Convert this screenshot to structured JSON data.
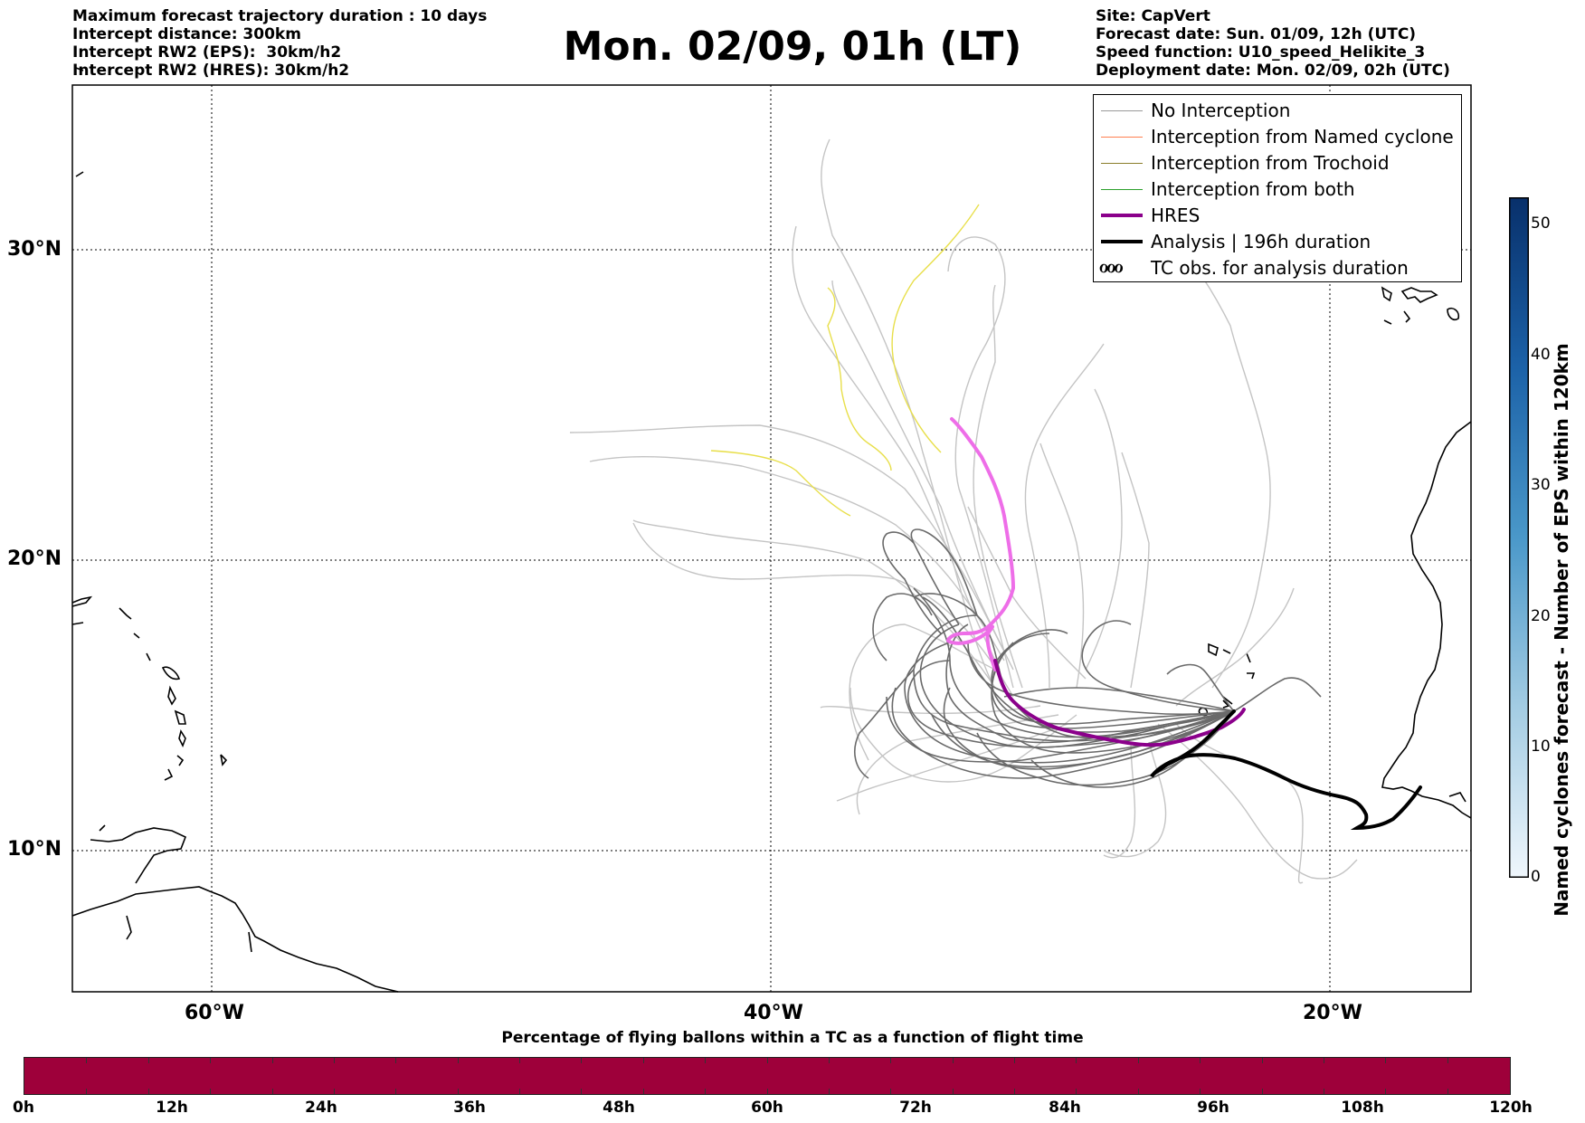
{
  "header_left": [
    "Maximum forecast trajectory duration : 10 days",
    "Intercept distance: 300km",
    "Intercept RW2 (EPS):  30km/h2",
    "Intercept RW2 (HRES): 30km/h2"
  ],
  "header_right": [
    "Site: CapVert",
    "Forecast date: Sun. 01/09, 12h (UTC)",
    "Speed function: U10_speed_Helikite_3",
    "Deployment date: Mon. 02/09, 02h (UTC)"
  ],
  "title": "Mon. 02/09, 01h (LT)",
  "latitude_labels": [
    "30°N",
    "20°N",
    "10°N"
  ],
  "longitude_labels": [
    "60°W",
    "40°W",
    "20°W"
  ],
  "legend": [
    {
      "label": "No Interception",
      "color": "#999999",
      "style": "thin"
    },
    {
      "label": "Interception from Named cyclone",
      "color": "#ff7f50",
      "style": "thin"
    },
    {
      "label": "Interception from Trochoid",
      "color": "#8b7d2a",
      "style": "thin"
    },
    {
      "label": "Interception from both",
      "color": "#2ca02c",
      "style": "thin"
    },
    {
      "label": "HRES",
      "color": "#8b008b",
      "style": "thick"
    },
    {
      "label": "Analysis | 196h duration",
      "color": "#000000",
      "style": "thick"
    },
    {
      "label": "TC obs. for analysis duration",
      "color": "#000000",
      "style": "symbol",
      "symbol": "ℴℴℴ"
    }
  ],
  "colorbar_right": {
    "label": "Named cyclones forecast - Number of EPS within 120km",
    "ticks": [
      "50",
      "40",
      "30",
      "20",
      "10",
      "0"
    ],
    "color_top": "#08306b",
    "color_bottom": "#eff6fc"
  },
  "bottom_colorbar": {
    "title": "Percentage of flying ballons within a TC as a function of flight time",
    "ticks": [
      "0h",
      "12h",
      "24h",
      "36h",
      "48h",
      "60h",
      "72h",
      "84h",
      "96h",
      "108h",
      "120h"
    ],
    "color": "#9e003a"
  }
}
